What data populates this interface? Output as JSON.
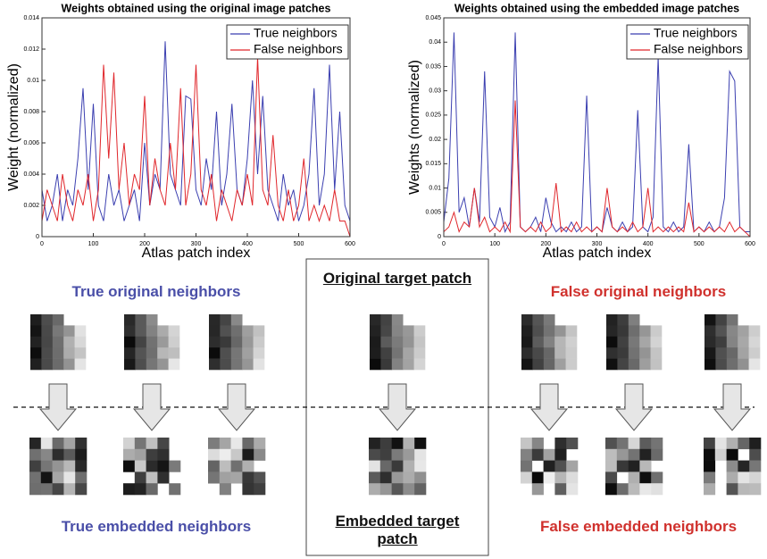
{
  "chart_data": [
    {
      "type": "line",
      "title": "Weights obtained using the original image patches",
      "x_label": "Atlas patch index",
      "y_label": "Weight (normalized)",
      "x": [
        0,
        10,
        20,
        30,
        40,
        50,
        60,
        70,
        80,
        90,
        100,
        110,
        120,
        130,
        140,
        150,
        160,
        170,
        180,
        190,
        200,
        210,
        220,
        230,
        240,
        250,
        260,
        270,
        280,
        290,
        300,
        310,
        320,
        330,
        340,
        350,
        360,
        370,
        380,
        390,
        400,
        410,
        420,
        430,
        440,
        450,
        460,
        470,
        480,
        490,
        500,
        510,
        520,
        530,
        540,
        550,
        560,
        570,
        580,
        590,
        600
      ],
      "series": [
        {
          "name": "True neighbors",
          "color": "#3b3fb0",
          "values": [
            0.003,
            0.001,
            0.002,
            0.004,
            0.001,
            0.003,
            0.002,
            0.005,
            0.0095,
            0.003,
            0.0085,
            0.002,
            0.001,
            0.004,
            0.002,
            0.003,
            0.001,
            0.002,
            0.003,
            0.001,
            0.006,
            0.002,
            0.004,
            0.003,
            0.0125,
            0.004,
            0.003,
            0.002,
            0.009,
            0.0088,
            0.003,
            0.002,
            0.005,
            0.003,
            0.008,
            0.002,
            0.004,
            0.0085,
            0.003,
            0.002,
            0.005,
            0.01,
            0.004,
            0.009,
            0.003,
            0.002,
            0.001,
            0.004,
            0.002,
            0.003,
            0.001,
            0.002,
            0.004,
            0.0095,
            0.002,
            0.004,
            0.011,
            0.003,
            0.008,
            0.002,
            0.001
          ]
        },
        {
          "name": "False neighbors",
          "color": "#e0262b",
          "values": [
            0.001,
            0.003,
            0.002,
            0.001,
            0.004,
            0.002,
            0.001,
            0.003,
            0.002,
            0.004,
            0.001,
            0.003,
            0.011,
            0.005,
            0.0105,
            0.003,
            0.006,
            0.002,
            0.004,
            0.003,
            0.009,
            0.002,
            0.005,
            0.003,
            0.002,
            0.006,
            0.003,
            0.0095,
            0.002,
            0.004,
            0.011,
            0.003,
            0.002,
            0.004,
            0.001,
            0.003,
            0.002,
            0.001,
            0.003,
            0.002,
            0.004,
            0.002,
            0.0115,
            0.003,
            0.002,
            0.0065,
            0.002,
            0.001,
            0.003,
            0.001,
            0.002,
            0.005,
            0.001,
            0.002,
            0.001,
            0.002,
            0.001,
            0.003,
            0.001,
            0.001,
            0
          ]
        }
      ],
      "xlim": [
        0,
        600
      ],
      "xticks": [
        0,
        100,
        200,
        300,
        400,
        500,
        600
      ],
      "ylim": [
        0,
        0.014
      ],
      "yticks": [
        0,
        0.002,
        0.004,
        0.006,
        0.008,
        0.01,
        0.012,
        0.014
      ],
      "legend": "upper right"
    },
    {
      "type": "line",
      "title": "Weights obtained using the embedded image patches",
      "x_label": "Atlas patch index",
      "y_label": "Weights (normalized)",
      "x": [
        0,
        10,
        20,
        30,
        40,
        50,
        60,
        70,
        80,
        90,
        100,
        110,
        120,
        130,
        140,
        150,
        160,
        170,
        180,
        190,
        200,
        210,
        220,
        230,
        240,
        250,
        260,
        270,
        280,
        290,
        300,
        310,
        320,
        330,
        340,
        350,
        360,
        370,
        380,
        390,
        400,
        410,
        420,
        430,
        440,
        450,
        460,
        470,
        480,
        490,
        500,
        510,
        520,
        530,
        540,
        550,
        560,
        570,
        580,
        590,
        600
      ],
      "series": [
        {
          "name": "True neighbors",
          "color": "#3b3fb0",
          "values": [
            0.003,
            0.012,
            0.042,
            0.005,
            0.008,
            0.002,
            0.01,
            0.003,
            0.034,
            0.004,
            0.002,
            0.006,
            0.001,
            0.003,
            0.042,
            0.002,
            0.001,
            0.002,
            0.004,
            0.001,
            0.008,
            0.003,
            0.001,
            0.002,
            0.001,
            0.003,
            0.001,
            0.002,
            0.029,
            0.001,
            0.002,
            0.001,
            0.006,
            0.002,
            0.001,
            0.003,
            0.001,
            0.002,
            0.026,
            0.002,
            0.001,
            0.004,
            0.037,
            0.002,
            0.001,
            0.003,
            0.001,
            0.002,
            0.019,
            0.001,
            0.002,
            0.001,
            0.003,
            0.001,
            0.002,
            0.008,
            0.034,
            0.032,
            0.002,
            0.001,
            0.001
          ]
        },
        {
          "name": "False neighbors",
          "color": "#e0262b",
          "values": [
            0.001,
            0.002,
            0.005,
            0.001,
            0.003,
            0.002,
            0.01,
            0.002,
            0.004,
            0.001,
            0.002,
            0.001,
            0.003,
            0.001,
            0.028,
            0.002,
            0.001,
            0.002,
            0.001,
            0.003,
            0.001,
            0.002,
            0.011,
            0.001,
            0.002,
            0.001,
            0.003,
            0.001,
            0.002,
            0.001,
            0.002,
            0.001,
            0.01,
            0.002,
            0.001,
            0.002,
            0.001,
            0.003,
            0.001,
            0.002,
            0.01,
            0.001,
            0.002,
            0.001,
            0.002,
            0.001,
            0.002,
            0.001,
            0.007,
            0.001,
            0.002,
            0.001,
            0.002,
            0.001,
            0.002,
            0.001,
            0.003,
            0.001,
            0.002,
            0.001,
            0
          ]
        }
      ],
      "xlim": [
        0,
        600
      ],
      "xticks": [
        0,
        100,
        200,
        300,
        400,
        500,
        600
      ],
      "ylim": [
        0,
        0.045
      ],
      "yticks": [
        0,
        0.005,
        0.01,
        0.015,
        0.02,
        0.025,
        0.03,
        0.035,
        0.04,
        0.045
      ],
      "legend": "upper right"
    }
  ],
  "diagram": {
    "true_original": "True original neighbors",
    "original_target": "Original target patch",
    "false_original": "False original neighbors",
    "true_embedded": "True embedded neighbors",
    "embedded_target": "Embedded target patch",
    "false_embedded": "False embedded neighbors"
  }
}
